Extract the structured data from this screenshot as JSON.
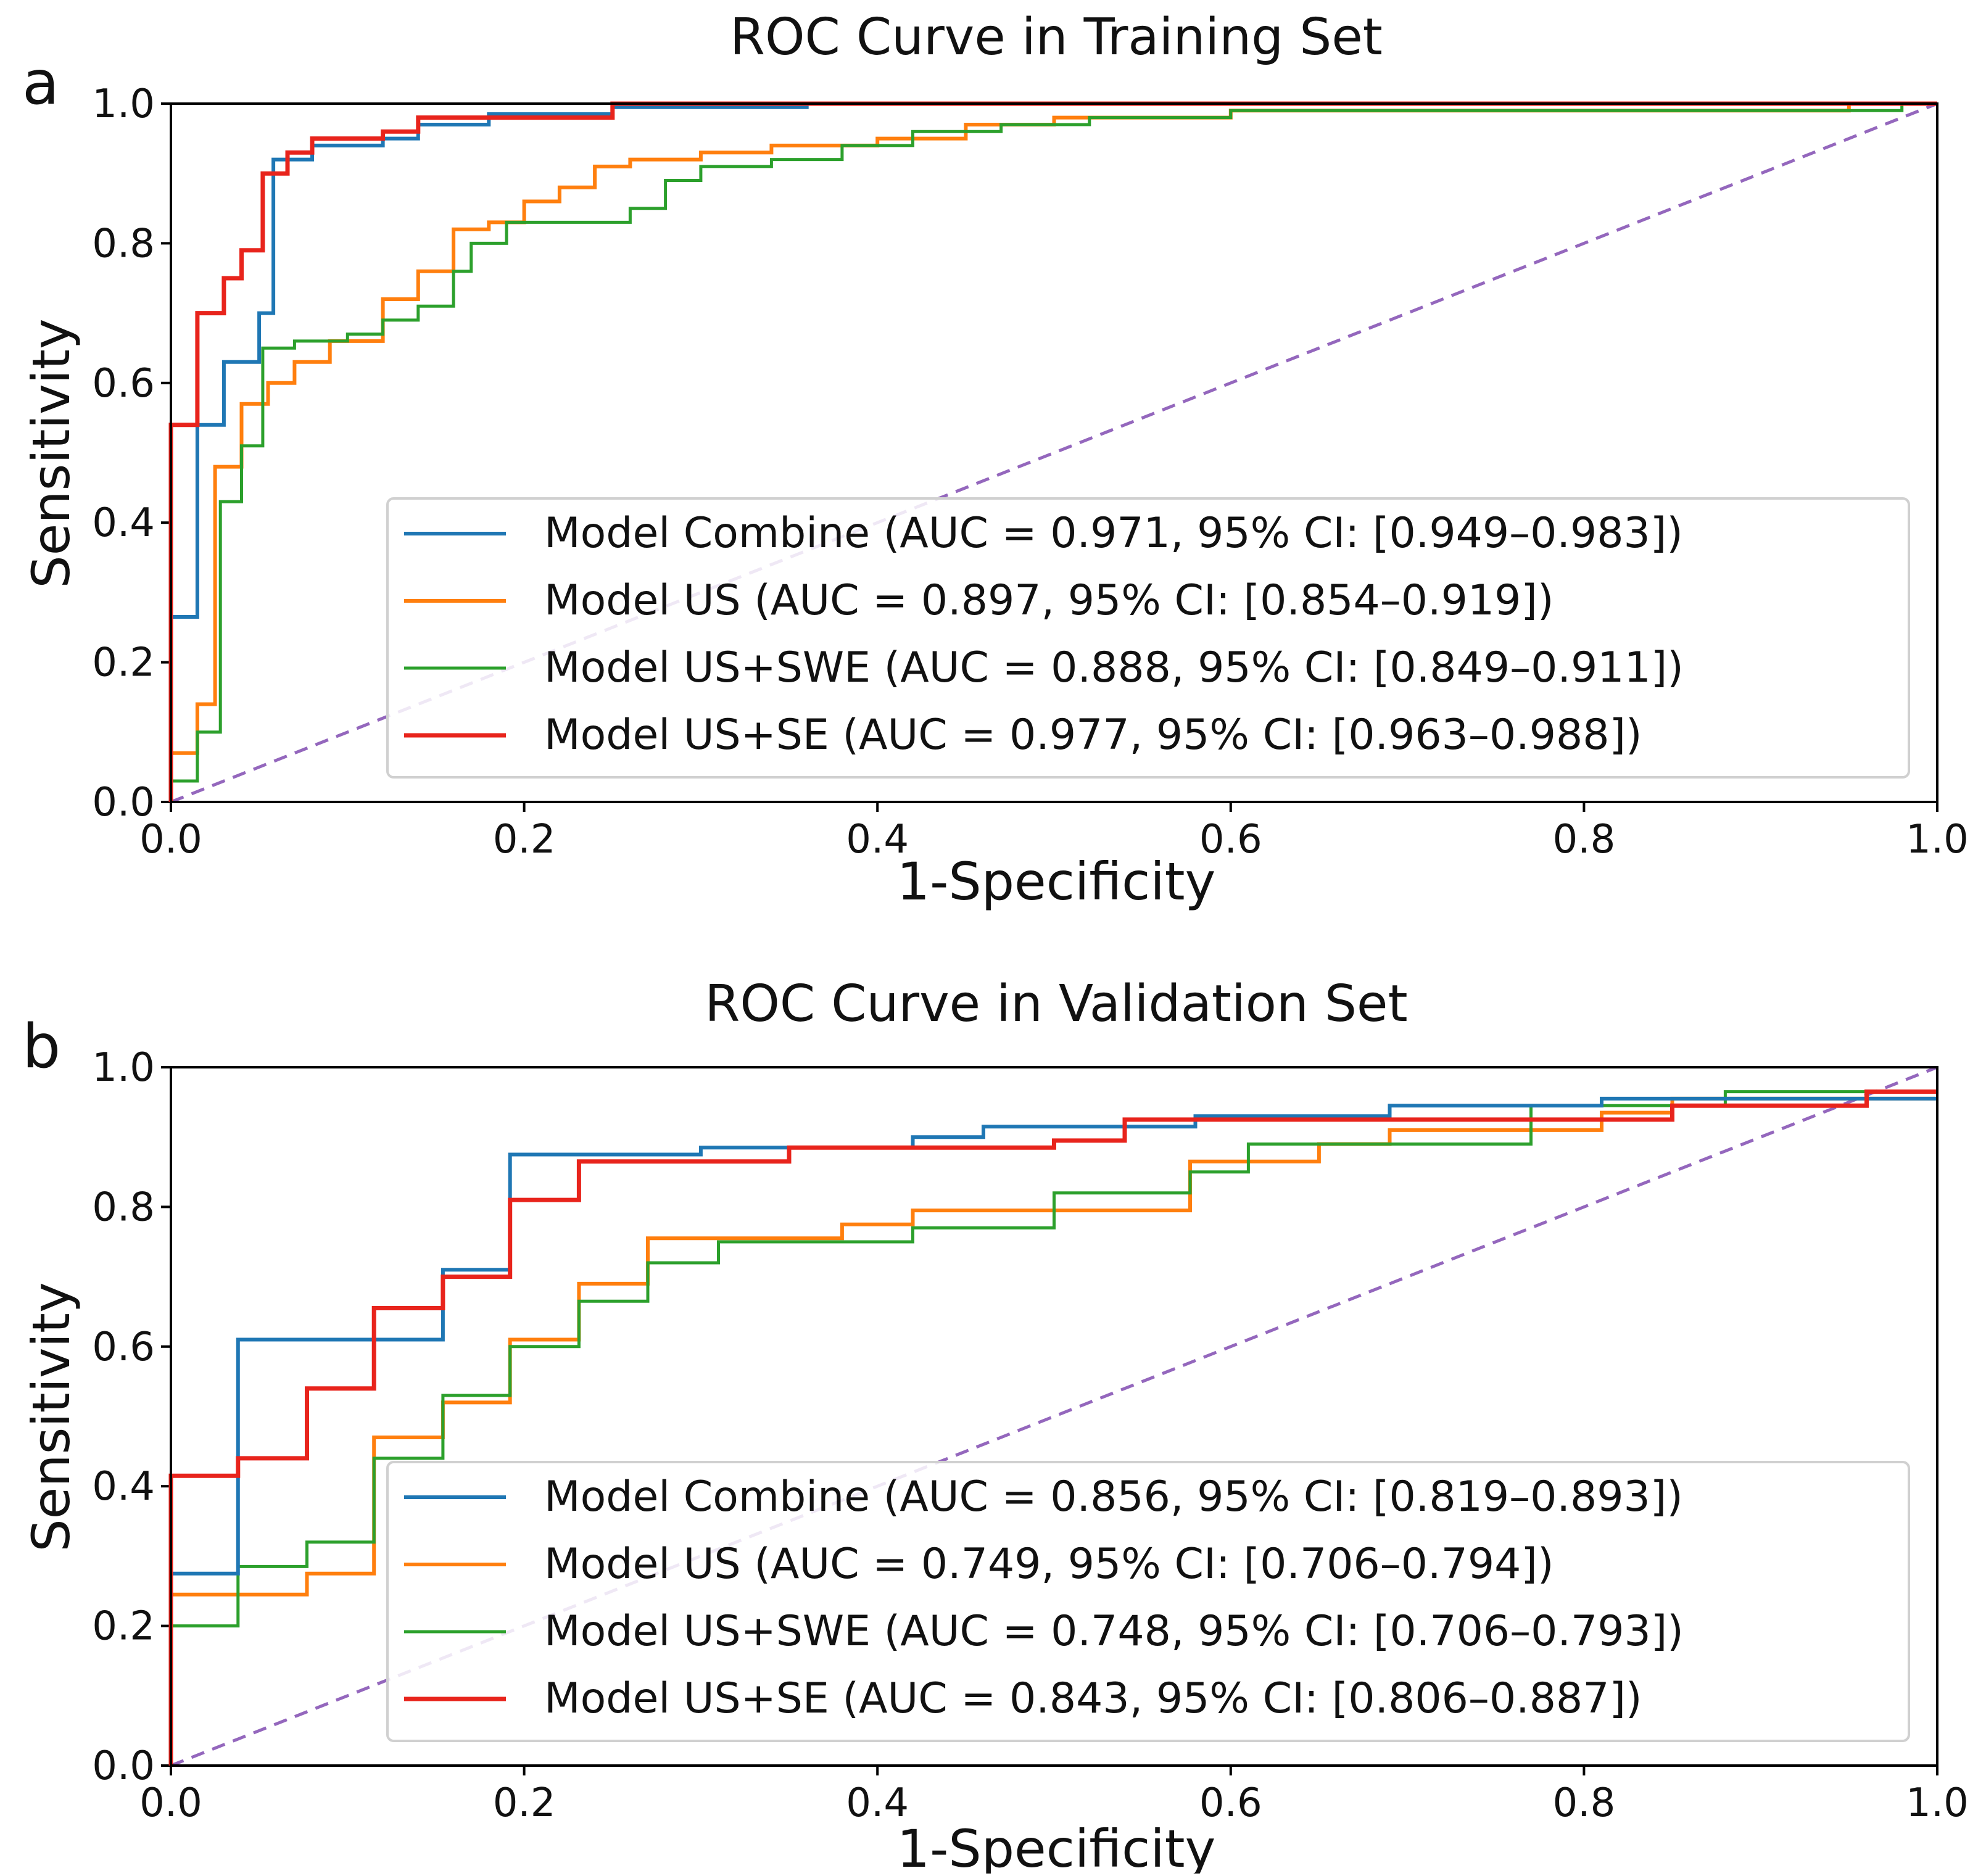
{
  "chart_data": [
    {
      "type": "line",
      "panel_label": "a",
      "title": "ROC Curve in Training Set",
      "xlabel": "1-Specificity",
      "ylabel": "Sensitivity",
      "xlim": [
        0.0,
        1.0
      ],
      "ylim": [
        0.0,
        1.0
      ],
      "xticks": [
        "0.0",
        "0.2",
        "0.4",
        "0.6",
        "0.8",
        "1.0"
      ],
      "yticks": [
        "0.0",
        "0.2",
        "0.4",
        "0.6",
        "0.8",
        "1.0"
      ],
      "grid": false,
      "legend_position": "lower-right",
      "series": [
        {
          "name": "Model Combine (AUC = 0.971, 95% CI: [0.949–0.983])",
          "color": "#1f77b4",
          "x": [
            0,
            0,
            0.015,
            0.015,
            0.03,
            0.03,
            0.05,
            0.05,
            0.058,
            0.058,
            0.08,
            0.08,
            0.12,
            0.12,
            0.14,
            0.14,
            0.18,
            0.18,
            0.25,
            0.25,
            0.36,
            0.36,
            0.55,
            0.55,
            1.0
          ],
          "y": [
            0,
            0.265,
            0.265,
            0.54,
            0.54,
            0.63,
            0.63,
            0.7,
            0.7,
            0.92,
            0.92,
            0.94,
            0.94,
            0.95,
            0.95,
            0.97,
            0.97,
            0.985,
            0.985,
            0.995,
            0.995,
            1.0,
            1.0,
            1.0,
            1.0
          ]
        },
        {
          "name": "Model US (AUC = 0.897, 95% CI: [0.854–0.919])",
          "color": "#ff7f0e",
          "x": [
            0,
            0,
            0.015,
            0.015,
            0.025,
            0.025,
            0.04,
            0.04,
            0.055,
            0.055,
            0.07,
            0.07,
            0.09,
            0.09,
            0.12,
            0.12,
            0.14,
            0.14,
            0.16,
            0.16,
            0.18,
            0.18,
            0.2,
            0.2,
            0.22,
            0.22,
            0.24,
            0.24,
            0.26,
            0.26,
            0.3,
            0.3,
            0.34,
            0.34,
            0.4,
            0.4,
            0.45,
            0.45,
            0.5,
            0.5,
            0.6,
            0.6,
            0.95,
            0.95,
            1.0
          ],
          "y": [
            0,
            0.07,
            0.07,
            0.14,
            0.14,
            0.48,
            0.48,
            0.57,
            0.57,
            0.6,
            0.6,
            0.63,
            0.63,
            0.66,
            0.66,
            0.72,
            0.72,
            0.76,
            0.76,
            0.82,
            0.82,
            0.83,
            0.83,
            0.86,
            0.86,
            0.88,
            0.88,
            0.91,
            0.91,
            0.92,
            0.92,
            0.93,
            0.93,
            0.94,
            0.94,
            0.95,
            0.95,
            0.97,
            0.97,
            0.98,
            0.98,
            0.99,
            0.99,
            1.0,
            1.0
          ]
        },
        {
          "name": "Model US+SWE (AUC = 0.888, 95% CI: [0.849–0.911])",
          "color": "#2ca02c",
          "x": [
            0,
            0,
            0.015,
            0.015,
            0.028,
            0.028,
            0.04,
            0.04,
            0.052,
            0.052,
            0.07,
            0.07,
            0.1,
            0.1,
            0.12,
            0.12,
            0.14,
            0.14,
            0.16,
            0.16,
            0.17,
            0.17,
            0.19,
            0.19,
            0.26,
            0.26,
            0.28,
            0.28,
            0.3,
            0.3,
            0.34,
            0.34,
            0.38,
            0.38,
            0.42,
            0.42,
            0.47,
            0.47,
            0.52,
            0.52,
            0.6,
            0.6,
            0.98,
            0.98,
            1.0
          ],
          "y": [
            0,
            0.03,
            0.03,
            0.1,
            0.1,
            0.43,
            0.43,
            0.51,
            0.51,
            0.65,
            0.65,
            0.66,
            0.66,
            0.67,
            0.67,
            0.69,
            0.69,
            0.71,
            0.71,
            0.76,
            0.76,
            0.8,
            0.8,
            0.83,
            0.83,
            0.85,
            0.85,
            0.89,
            0.89,
            0.91,
            0.91,
            0.92,
            0.92,
            0.94,
            0.94,
            0.96,
            0.96,
            0.97,
            0.97,
            0.98,
            0.98,
            0.99,
            0.99,
            1.0,
            1.0
          ]
        },
        {
          "name": "Model US+SE (AUC = 0.977, 95% CI: [0.963–0.988])",
          "color": "#e8241c",
          "x": [
            0,
            0,
            0.015,
            0.015,
            0.03,
            0.03,
            0.04,
            0.04,
            0.052,
            0.052,
            0.066,
            0.066,
            0.08,
            0.08,
            0.12,
            0.12,
            0.14,
            0.14,
            0.25,
            0.25,
            1.0
          ],
          "y": [
            0,
            0.54,
            0.54,
            0.7,
            0.7,
            0.75,
            0.75,
            0.79,
            0.79,
            0.9,
            0.9,
            0.93,
            0.93,
            0.95,
            0.95,
            0.96,
            0.96,
            0.98,
            0.98,
            1.0,
            1.0
          ]
        },
        {
          "name": "",
          "color": "#9467bd",
          "dashed": true,
          "x": [
            0,
            1
          ],
          "y": [
            0,
            1
          ]
        }
      ]
    },
    {
      "type": "line",
      "panel_label": "b",
      "title": "ROC Curve in Validation Set",
      "xlabel": "1-Specificity",
      "ylabel": "Sensitivity",
      "xlim": [
        0.0,
        1.0
      ],
      "ylim": [
        0.0,
        1.0
      ],
      "xticks": [
        "0.0",
        "0.2",
        "0.4",
        "0.6",
        "0.8",
        "1.0"
      ],
      "yticks": [
        "0.0",
        "0.2",
        "0.4",
        "0.6",
        "0.8",
        "1.0"
      ],
      "grid": false,
      "legend_position": "lower-right",
      "series": [
        {
          "name": "Model Combine (AUC = 0.856, 95% CI: [0.819–0.893])",
          "color": "#1f77b4",
          "x": [
            0,
            0,
            0.038,
            0.038,
            0.154,
            0.154,
            0.192,
            0.192,
            0.3,
            0.3,
            0.42,
            0.42,
            0.46,
            0.46,
            0.58,
            0.58,
            0.69,
            0.69,
            0.81,
            0.81,
            1.0
          ],
          "y": [
            0,
            0.275,
            0.275,
            0.61,
            0.61,
            0.71,
            0.71,
            0.875,
            0.875,
            0.885,
            0.885,
            0.9,
            0.9,
            0.915,
            0.915,
            0.93,
            0.93,
            0.945,
            0.945,
            0.955,
            0.955
          ]
        },
        {
          "name": "Model US (AUC = 0.749, 95% CI: [0.706–0.794])",
          "color": "#ff7f0e",
          "x": [
            0,
            0,
            0.077,
            0.077,
            0.115,
            0.115,
            0.154,
            0.154,
            0.192,
            0.192,
            0.231,
            0.231,
            0.27,
            0.27,
            0.38,
            0.38,
            0.42,
            0.42,
            0.577,
            0.577,
            0.65,
            0.65,
            0.69,
            0.69,
            0.81,
            0.81,
            0.85,
            0.85,
            1.0
          ],
          "y": [
            0,
            0.245,
            0.245,
            0.275,
            0.275,
            0.47,
            0.47,
            0.52,
            0.52,
            0.61,
            0.61,
            0.69,
            0.69,
            0.755,
            0.755,
            0.775,
            0.775,
            0.795,
            0.795,
            0.865,
            0.865,
            0.89,
            0.89,
            0.91,
            0.91,
            0.935,
            0.935,
            0.955,
            0.955
          ]
        },
        {
          "name": "Model US+SWE (AUC = 0.748, 95% CI: [0.706–0.793])",
          "color": "#2ca02c",
          "x": [
            0,
            0,
            0.038,
            0.038,
            0.077,
            0.077,
            0.115,
            0.115,
            0.154,
            0.154,
            0.192,
            0.192,
            0.231,
            0.231,
            0.27,
            0.27,
            0.31,
            0.31,
            0.42,
            0.42,
            0.5,
            0.5,
            0.577,
            0.577,
            0.61,
            0.61,
            0.77,
            0.77,
            0.88,
            0.88,
            1.0
          ],
          "y": [
            0,
            0.2,
            0.2,
            0.285,
            0.285,
            0.32,
            0.32,
            0.44,
            0.44,
            0.53,
            0.53,
            0.6,
            0.6,
            0.665,
            0.665,
            0.72,
            0.72,
            0.75,
            0.75,
            0.77,
            0.77,
            0.82,
            0.82,
            0.85,
            0.85,
            0.89,
            0.89,
            0.945,
            0.945,
            0.965,
            0.965
          ]
        },
        {
          "name": "Model US+SE (AUC = 0.843, 95% CI: [0.806–0.887])",
          "color": "#e8241c",
          "x": [
            0,
            0,
            0.038,
            0.038,
            0.077,
            0.077,
            0.115,
            0.115,
            0.154,
            0.154,
            0.192,
            0.192,
            0.231,
            0.231,
            0.35,
            0.35,
            0.5,
            0.5,
            0.54,
            0.54,
            0.85,
            0.85,
            0.96,
            0.96,
            1.0
          ],
          "y": [
            0,
            0.415,
            0.415,
            0.44,
            0.44,
            0.54,
            0.54,
            0.655,
            0.655,
            0.7,
            0.7,
            0.81,
            0.81,
            0.865,
            0.865,
            0.885,
            0.885,
            0.895,
            0.895,
            0.925,
            0.925,
            0.945,
            0.945,
            0.965,
            0.965
          ]
        },
        {
          "name": "",
          "color": "#9467bd",
          "dashed": true,
          "x": [
            0,
            1
          ],
          "y": [
            0,
            1
          ]
        }
      ]
    }
  ]
}
